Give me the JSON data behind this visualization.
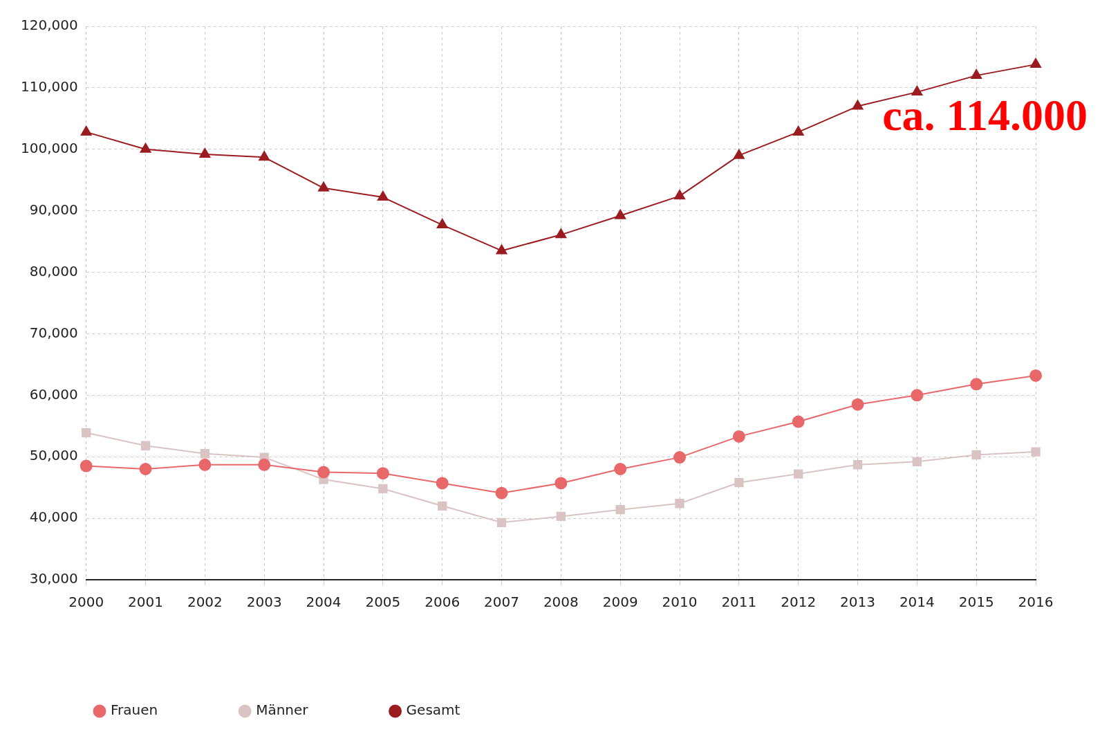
{
  "chart_data": {
    "type": "line",
    "categories": [
      "2000",
      "2001",
      "2002",
      "2003",
      "2004",
      "2005",
      "2006",
      "2007",
      "2008",
      "2009",
      "2010",
      "2011",
      "2012",
      "2013",
      "2014",
      "2015",
      "2016"
    ],
    "series": [
      {
        "name": "Frauen",
        "color": "#e8686a",
        "marker": "circle",
        "values": [
          48500,
          48000,
          48700,
          48700,
          47500,
          47300,
          45700,
          44100,
          45700,
          48000,
          49900,
          53300,
          55700,
          58500,
          60000,
          61800,
          63200
        ]
      },
      {
        "name": "Männer",
        "color": "#d9c3c3",
        "marker": "square",
        "values": [
          53900,
          51800,
          50500,
          49900,
          46300,
          44800,
          42000,
          39300,
          40300,
          41400,
          42400,
          45800,
          47200,
          48700,
          49200,
          50300,
          50800
        ]
      },
      {
        "name": "Gesamt",
        "color": "#9b1c20",
        "marker": "triangle",
        "values": [
          102800,
          100000,
          99200,
          98700,
          93700,
          92200,
          87700,
          83500,
          86100,
          89200,
          92400,
          99000,
          102800,
          107000,
          109300,
          112000,
          113800
        ]
      }
    ],
    "ylim": [
      30000,
      120000
    ],
    "yticks": [
      {
        "value": 30000,
        "label": "30,000"
      },
      {
        "value": 40000,
        "label": "40,000"
      },
      {
        "value": 50000,
        "label": "50,000"
      },
      {
        "value": 60000,
        "label": "60,000"
      },
      {
        "value": 70000,
        "label": "70,000"
      },
      {
        "value": 80000,
        "label": "80,000"
      },
      {
        "value": 90000,
        "label": "90,000"
      },
      {
        "value": 100000,
        "label": "100,000"
      },
      {
        "value": 110000,
        "label": "110,000"
      },
      {
        "value": 120000,
        "label": "120,000"
      }
    ],
    "grid": true,
    "legend": "bottom left",
    "line_style": "solid",
    "annotations": [
      {
        "text": "ca. 114.000",
        "x": "2016",
        "y": 114000
      }
    ]
  }
}
